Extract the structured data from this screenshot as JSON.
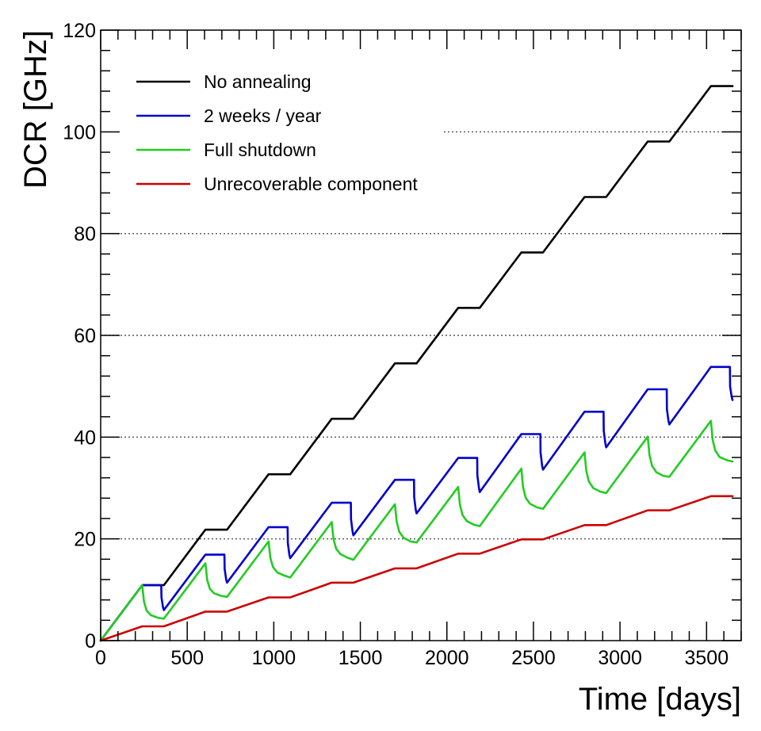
{
  "chart_data": {
    "type": "line",
    "title": "",
    "xlabel": "Time [days]",
    "ylabel": "DCR [GHz]",
    "xlim": [
      0,
      3700
    ],
    "ylim": [
      0,
      120
    ],
    "xticks": [
      0,
      500,
      1000,
      1500,
      2000,
      2500,
      3000,
      3500
    ],
    "yticks": [
      0,
      20,
      40,
      60,
      80,
      100,
      120
    ],
    "grid": "horizontal dotted",
    "legend_position": "top-left",
    "series": [
      {
        "name": "No annealing",
        "color": "#000000",
        "x": [
          0,
          240,
          365,
          605,
          730,
          970,
          1095,
          1335,
          1460,
          1700,
          1825,
          2065,
          2190,
          2430,
          2555,
          2795,
          2920,
          3160,
          3285,
          3525,
          3650
        ],
        "y": [
          0,
          10.9,
          10.9,
          21.8,
          21.8,
          32.7,
          32.7,
          43.6,
          43.6,
          54.5,
          54.5,
          65.4,
          65.4,
          76.3,
          76.3,
          87.2,
          87.2,
          98.1,
          98.1,
          109.0,
          109.0
        ]
      },
      {
        "name": "2 weeks / year",
        "color": "#0000cc",
        "x": [
          0,
          240,
          350,
          351,
          360,
          365,
          605,
          715,
          716,
          725,
          730,
          970,
          1080,
          1081,
          1090,
          1095,
          1335,
          1445,
          1446,
          1455,
          1460,
          1700,
          1810,
          1811,
          1820,
          1825,
          2065,
          2175,
          2176,
          2185,
          2190,
          2430,
          2540,
          2541,
          2550,
          2555,
          2795,
          2905,
          2906,
          2915,
          2920,
          3160,
          3270,
          3271,
          3280,
          3285,
          3525,
          3635,
          3636,
          3645,
          3650
        ],
        "y": [
          0,
          10.9,
          10.9,
          8.5,
          6.6,
          6.0,
          16.9,
          16.9,
          14.1,
          12.0,
          11.4,
          22.3,
          22.3,
          19.2,
          16.9,
          16.2,
          27.1,
          27.1,
          23.9,
          21.5,
          20.7,
          31.6,
          31.6,
          28.2,
          25.8,
          25.0,
          35.9,
          35.9,
          32.5,
          30.0,
          29.2,
          40.6,
          40.6,
          37.0,
          34.4,
          33.6,
          45.0,
          45.0,
          41.3,
          38.8,
          38.0,
          49.4,
          49.4,
          45.5,
          43.2,
          42.5,
          53.8,
          53.8,
          50.0,
          47.9,
          47.3
        ]
      },
      {
        "name": "Full shutdown",
        "color": "#22cc22",
        "x": [
          0,
          240,
          250,
          265,
          290,
          330,
          365,
          605,
          615,
          630,
          655,
          695,
          730,
          970,
          980,
          995,
          1020,
          1060,
          1095,
          1335,
          1345,
          1360,
          1385,
          1425,
          1460,
          1700,
          1710,
          1725,
          1750,
          1790,
          1825,
          2065,
          2075,
          2090,
          2115,
          2155,
          2190,
          2430,
          2440,
          2455,
          2480,
          2520,
          2555,
          2795,
          2805,
          2820,
          2845,
          2885,
          2920,
          3160,
          3170,
          3185,
          3210,
          3250,
          3285,
          3525,
          3535,
          3550,
          3575,
          3615,
          3650
        ],
        "y": [
          0,
          10.9,
          7.7,
          5.9,
          5.0,
          4.5,
          4.3,
          15.2,
          12.0,
          10.2,
          9.3,
          8.8,
          8.6,
          19.5,
          16.3,
          14.5,
          13.4,
          12.8,
          12.4,
          23.3,
          20.0,
          18.1,
          17.0,
          16.3,
          15.9,
          26.8,
          23.4,
          21.4,
          20.2,
          19.5,
          19.3,
          30.2,
          26.8,
          24.7,
          23.5,
          22.8,
          22.5,
          33.8,
          30.2,
          28.1,
          26.9,
          26.2,
          25.9,
          37.0,
          33.4,
          31.3,
          30.0,
          29.3,
          29.0,
          40.1,
          36.5,
          34.4,
          33.1,
          32.4,
          32.2,
          43.2,
          39.5,
          37.4,
          36.1,
          35.5,
          35.2
        ]
      },
      {
        "name": "Unrecoverable component",
        "color": "#cc0000",
        "x": [
          0,
          240,
          365,
          605,
          730,
          970,
          1095,
          1335,
          1460,
          1700,
          1825,
          2065,
          2190,
          2430,
          2555,
          2795,
          2920,
          3160,
          3285,
          3525,
          3650
        ],
        "y": [
          0,
          2.8,
          2.8,
          5.7,
          5.7,
          8.5,
          8.5,
          11.4,
          11.4,
          14.2,
          14.2,
          17.1,
          17.1,
          19.9,
          19.9,
          22.7,
          22.7,
          25.6,
          25.6,
          28.4,
          28.4
        ]
      }
    ]
  }
}
